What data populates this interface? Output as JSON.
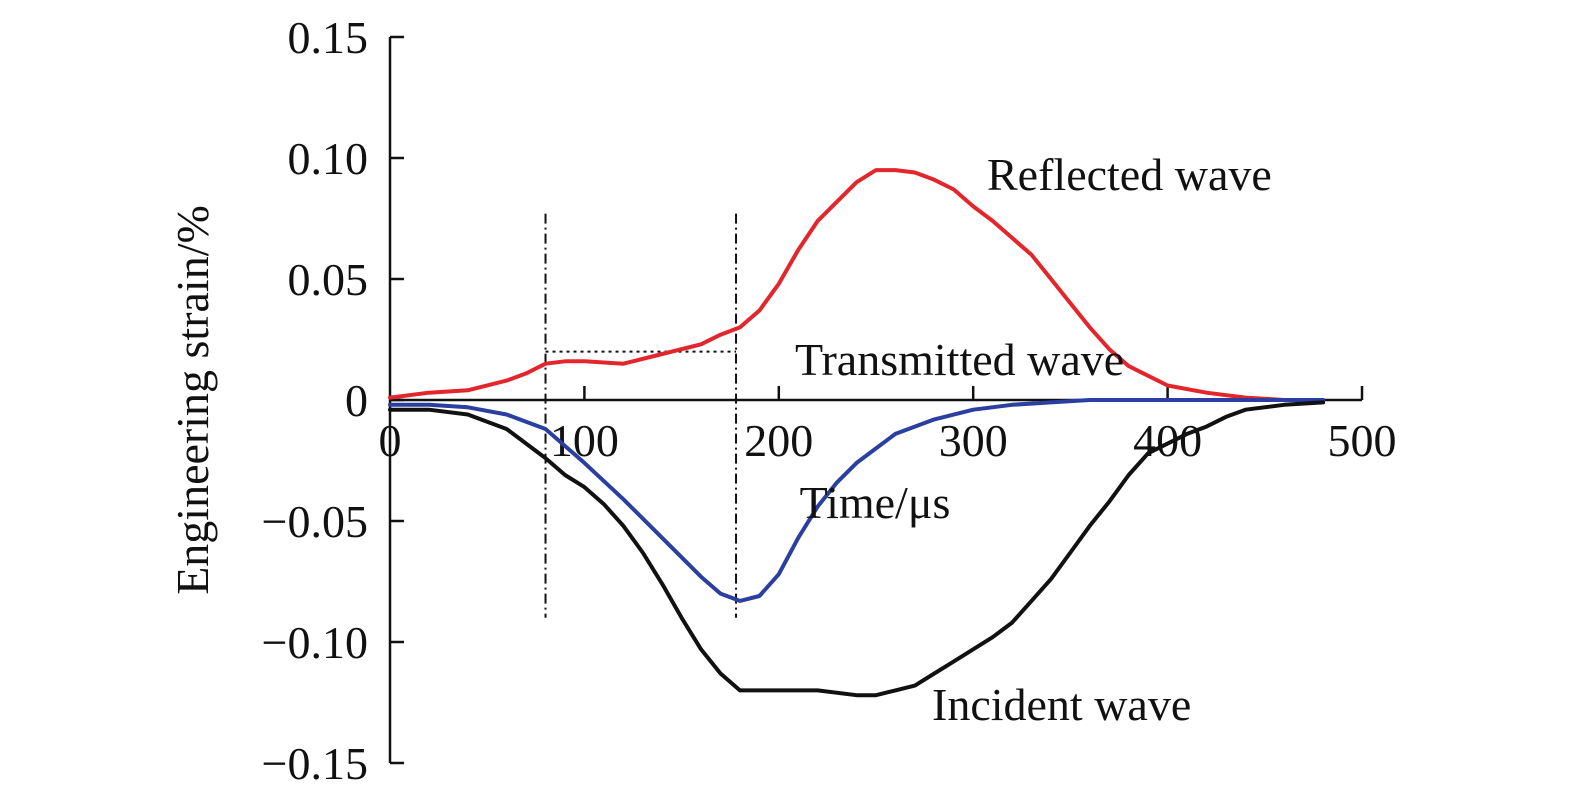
{
  "chart_data": {
    "type": "line",
    "title": "",
    "xlabel": "Time/μs",
    "ylabel": "Engineering strain/%",
    "xlim": [
      0,
      500
    ],
    "ylim": [
      -0.15,
      0.15
    ],
    "x_ticks": [
      0,
      100,
      200,
      300,
      400,
      500
    ],
    "x_tick_labels": [
      "0",
      "100",
      "200",
      "300",
      "400",
      "500"
    ],
    "y_ticks": [
      0.15,
      0.1,
      0.05,
      0,
      -0.05,
      -0.1,
      -0.15
    ],
    "y_tick_labels": [
      "0.15",
      "0.10",
      "0.05",
      "0",
      "−0.05",
      "−0.10",
      "−0.15"
    ],
    "grid": false,
    "legend": "inline-labels",
    "series": [
      {
        "name": "Reflected wave",
        "color": "#e3262b",
        "x": [
          0,
          20,
          40,
          60,
          70,
          80,
          90,
          100,
          120,
          140,
          160,
          170,
          180,
          190,
          200,
          210,
          220,
          230,
          240,
          250,
          260,
          270,
          280,
          290,
          300,
          310,
          320,
          330,
          340,
          350,
          360,
          370,
          380,
          390,
          400,
          420,
          440,
          460,
          480
        ],
        "y": [
          0.001,
          0.003,
          0.004,
          0.008,
          0.011,
          0.015,
          0.016,
          0.016,
          0.015,
          0.019,
          0.023,
          0.027,
          0.03,
          0.037,
          0.048,
          0.062,
          0.074,
          0.082,
          0.09,
          0.095,
          0.095,
          0.094,
          0.091,
          0.087,
          0.08,
          0.074,
          0.067,
          0.06,
          0.05,
          0.04,
          0.03,
          0.021,
          0.014,
          0.01,
          0.006,
          0.003,
          0.001,
          0.0,
          0.0
        ]
      },
      {
        "name": "Transmitted wave",
        "color": "#2b3fa0",
        "x": [
          0,
          20,
          40,
          60,
          80,
          100,
          120,
          140,
          160,
          170,
          180,
          190,
          200,
          210,
          220,
          230,
          240,
          250,
          260,
          280,
          300,
          320,
          340,
          360,
          380,
          400,
          420,
          440,
          460,
          480
        ],
        "y": [
          -0.002,
          -0.002,
          -0.003,
          -0.006,
          -0.012,
          -0.026,
          -0.041,
          -0.057,
          -0.073,
          -0.08,
          -0.083,
          -0.081,
          -0.072,
          -0.057,
          -0.044,
          -0.034,
          -0.026,
          -0.02,
          -0.014,
          -0.008,
          -0.004,
          -0.002,
          -0.001,
          0.0,
          0.0,
          0.0,
          0.0,
          0.0,
          0.0,
          0.0
        ]
      },
      {
        "name": "Incident wave",
        "color": "#111111",
        "x": [
          0,
          20,
          40,
          60,
          80,
          90,
          100,
          110,
          120,
          130,
          140,
          150,
          160,
          170,
          180,
          190,
          200,
          220,
          240,
          250,
          260,
          270,
          280,
          290,
          300,
          310,
          320,
          330,
          340,
          350,
          360,
          370,
          380,
          390,
          400,
          410,
          420,
          430,
          440,
          460,
          480
        ],
        "y": [
          -0.004,
          -0.004,
          -0.006,
          -0.012,
          -0.024,
          -0.031,
          -0.036,
          -0.043,
          -0.052,
          -0.063,
          -0.076,
          -0.09,
          -0.103,
          -0.113,
          -0.12,
          -0.12,
          -0.12,
          -0.12,
          -0.122,
          -0.122,
          -0.12,
          -0.118,
          -0.113,
          -0.108,
          -0.103,
          -0.098,
          -0.092,
          -0.083,
          -0.074,
          -0.063,
          -0.052,
          -0.042,
          -0.031,
          -0.022,
          -0.018,
          -0.014,
          -0.011,
          -0.007,
          -0.004,
          -0.002,
          -0.001
        ]
      }
    ],
    "annotations": {
      "vertical_markers": [
        {
          "x": 80,
          "y_range": [
            -0.09,
            0.077
          ]
        },
        {
          "x": 178,
          "y_range": [
            -0.09,
            0.077
          ]
        }
      ],
      "horizontal_marker": {
        "x_range": [
          80,
          178
        ],
        "y": 0.02
      }
    }
  }
}
